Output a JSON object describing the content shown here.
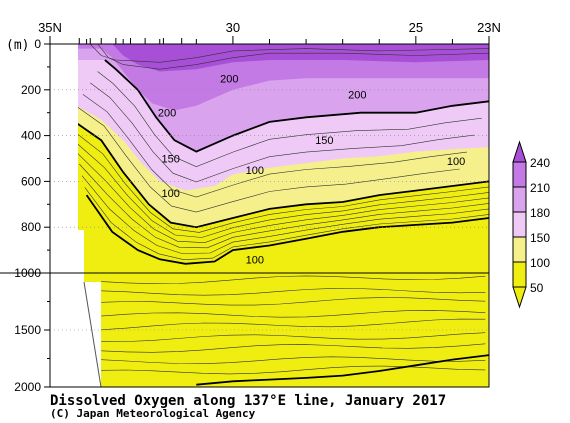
{
  "chart_data": {
    "type": "heatmap",
    "title": "Dissolved Oxygen along 137°E line, January 2017",
    "credit": "(C) Japan Meteorological Agency",
    "unit_label": "(m)",
    "x_axis": {
      "tick_labels": [
        "35N",
        "30",
        "25",
        "23N"
      ],
      "tick_values": [
        35,
        30,
        25,
        23
      ],
      "range": [
        35,
        23
      ]
    },
    "y_axis": {
      "tick_labels": [
        "0",
        "200",
        "400",
        "600",
        "800",
        "1000",
        "1500",
        "2000"
      ],
      "tick_values": [
        0,
        200,
        400,
        600,
        800,
        1000,
        1500,
        2000
      ],
      "upper_range": [
        0,
        1000
      ],
      "lower_range": [
        1000,
        2000
      ],
      "break_at": 1000
    },
    "legend": {
      "placement": "right",
      "levels": [
        "240",
        "210",
        "180",
        "150",
        "100",
        "50"
      ],
      "colors": [
        "#a84fd8",
        "#c37ae4",
        "#d9a3ee",
        "#efcaf6",
        "#f5f08c",
        "#f0ee10"
      ]
    },
    "contour_labels": [
      {
        "text": "200",
        "lat": 30.1,
        "depth": 150
      },
      {
        "text": "200",
        "lat": 26.6,
        "depth": 220
      },
      {
        "text": "200",
        "lat": 31.8,
        "depth": 300
      },
      {
        "text": "150",
        "lat": 27.5,
        "depth": 420
      },
      {
        "text": "100",
        "lat": 23.9,
        "depth": 510
      },
      {
        "text": "150",
        "lat": 31.7,
        "depth": 500
      },
      {
        "text": "100",
        "lat": 29.4,
        "depth": 550
      },
      {
        "text": "100",
        "lat": 31.7,
        "depth": 650
      },
      {
        "text": "100",
        "lat": 29.4,
        "depth": 940
      }
    ],
    "thick_contours": [
      {
        "value": "200",
        "points": [
          [
            33.5,
            70
          ],
          [
            33.2,
            110
          ],
          [
            32.6,
            200
          ],
          [
            32.1,
            320
          ],
          [
            31.6,
            420
          ],
          [
            31.0,
            470
          ],
          [
            30.0,
            400
          ],
          [
            29.0,
            340
          ],
          [
            28.0,
            320
          ],
          [
            26.5,
            300
          ],
          [
            25.0,
            300
          ],
          [
            24.0,
            270
          ],
          [
            23.0,
            250
          ]
        ]
      },
      {
        "value": "150",
        "points": [
          [
            34.5,
            320
          ],
          [
            33.6,
            420
          ],
          [
            33.0,
            560
          ],
          [
            32.3,
            700
          ],
          [
            31.7,
            780
          ],
          [
            31.0,
            800
          ],
          [
            30.0,
            760
          ],
          [
            29.0,
            720
          ],
          [
            28.0,
            700
          ],
          [
            27.0,
            690
          ],
          [
            26.0,
            660
          ],
          [
            25.0,
            640
          ],
          [
            24.0,
            620
          ],
          [
            23.0,
            600
          ]
        ]
      },
      {
        "value": "100",
        "points": [
          [
            34.0,
            660
          ],
          [
            33.3,
            820
          ],
          [
            32.6,
            900
          ],
          [
            32.0,
            940
          ],
          [
            31.3,
            960
          ],
          [
            30.5,
            950
          ],
          [
            30.0,
            900
          ],
          [
            29.0,
            880
          ],
          [
            28.0,
            850
          ],
          [
            27.0,
            820
          ],
          [
            26.0,
            800
          ],
          [
            25.0,
            790
          ],
          [
            24.0,
            780
          ],
          [
            23.0,
            760
          ]
        ]
      },
      {
        "value": "100",
        "points": [
          [
            31.0,
            1980
          ],
          [
            30.0,
            1950
          ],
          [
            29.0,
            1935
          ],
          [
            28.0,
            1920
          ],
          [
            27.0,
            1900
          ],
          [
            26.0,
            1860
          ],
          [
            25.0,
            1810
          ],
          [
            24.0,
            1760
          ],
          [
            23.0,
            1720
          ]
        ]
      }
    ]
  }
}
